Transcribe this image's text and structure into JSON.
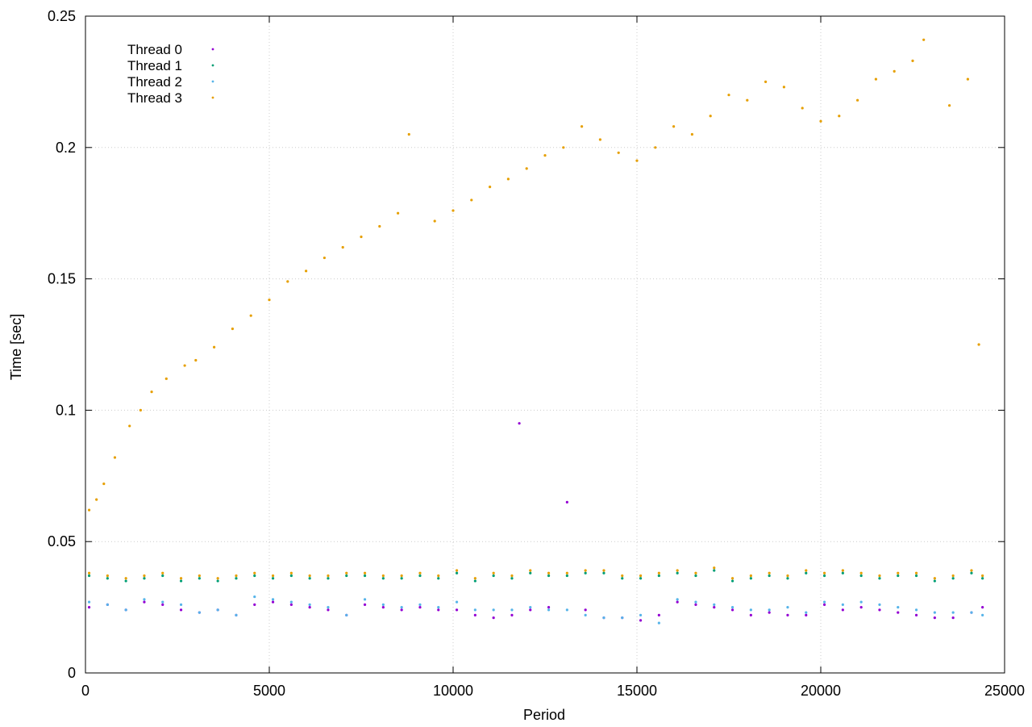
{
  "chart_data": {
    "type": "scatter",
    "title": "",
    "xlabel": "Period",
    "ylabel": "Time [sec]",
    "xlim": [
      0,
      25000
    ],
    "ylim": [
      0,
      0.25
    ],
    "x_ticks": [
      0,
      5000,
      10000,
      15000,
      20000,
      25000
    ],
    "x_tick_labels": [
      "0",
      "5000",
      "10000",
      "15000",
      "20000",
      "25000"
    ],
    "y_ticks": [
      0,
      0.05,
      0.1,
      0.15,
      0.2,
      0.25
    ],
    "y_tick_labels": [
      "0",
      "0.05",
      "0.1",
      "0.15",
      "0.2",
      "0.25"
    ],
    "grid": true,
    "legend_position": "top-left",
    "marker": "dot",
    "series": [
      {
        "name": "Thread 0",
        "color": "#9400d3",
        "x": [
          100,
          600,
          1100,
          1600,
          2100,
          2600,
          3100,
          3600,
          4100,
          4600,
          5100,
          5600,
          6100,
          6600,
          7100,
          7600,
          8100,
          8600,
          9100,
          9600,
          10100,
          10600,
          11100,
          11600,
          11800,
          12100,
          12600,
          13100,
          13600,
          14100,
          14600,
          15100,
          15600,
          16100,
          16600,
          17100,
          17600,
          18100,
          18600,
          19100,
          19600,
          20100,
          20600,
          21100,
          21600,
          22100,
          22600,
          23100,
          23600,
          24100,
          24400
        ],
        "y": [
          0.025,
          0.026,
          0.024,
          0.027,
          0.026,
          0.024,
          0.023,
          0.024,
          0.022,
          0.026,
          0.027,
          0.026,
          0.025,
          0.024,
          0.022,
          0.026,
          0.025,
          0.024,
          0.025,
          0.024,
          0.024,
          0.022,
          0.021,
          0.022,
          0.095,
          0.024,
          0.025,
          0.065,
          0.024,
          0.021,
          0.021,
          0.02,
          0.022,
          0.027,
          0.026,
          0.025,
          0.024,
          0.022,
          0.023,
          0.022,
          0.022,
          0.026,
          0.024,
          0.025,
          0.024,
          0.023,
          0.022,
          0.021,
          0.021,
          0.023,
          0.025
        ]
      },
      {
        "name": "Thread 1",
        "color": "#009e73",
        "x": [
          100,
          600,
          1100,
          1600,
          2100,
          2600,
          3100,
          3600,
          4100,
          4600,
          5100,
          5600,
          6100,
          6600,
          7100,
          7600,
          8100,
          8600,
          9100,
          9600,
          10100,
          10600,
          11100,
          11600,
          12100,
          12600,
          13100,
          13600,
          14100,
          14600,
          15100,
          15600,
          16100,
          16600,
          17100,
          17600,
          18100,
          18600,
          19100,
          19600,
          20100,
          20600,
          21100,
          21600,
          22100,
          22600,
          23100,
          23600,
          24100,
          24400
        ],
        "y": [
          0.037,
          0.036,
          0.035,
          0.036,
          0.037,
          0.035,
          0.036,
          0.035,
          0.036,
          0.037,
          0.036,
          0.037,
          0.036,
          0.036,
          0.037,
          0.037,
          0.036,
          0.036,
          0.037,
          0.036,
          0.038,
          0.035,
          0.037,
          0.036,
          0.038,
          0.037,
          0.037,
          0.038,
          0.038,
          0.036,
          0.036,
          0.037,
          0.038,
          0.037,
          0.039,
          0.035,
          0.036,
          0.037,
          0.036,
          0.038,
          0.037,
          0.038,
          0.037,
          0.036,
          0.037,
          0.037,
          0.035,
          0.036,
          0.038,
          0.036
        ]
      },
      {
        "name": "Thread 2",
        "color": "#56b4e9",
        "x": [
          100,
          600,
          1100,
          1600,
          2100,
          2600,
          3100,
          3600,
          4100,
          4600,
          5100,
          5600,
          6100,
          6600,
          7100,
          7600,
          8100,
          8600,
          9100,
          9600,
          10100,
          10600,
          11100,
          11600,
          12100,
          12600,
          13100,
          13600,
          14100,
          14600,
          15100,
          15600,
          16100,
          16600,
          17100,
          17600,
          18100,
          18600,
          19100,
          19600,
          20100,
          20600,
          21100,
          21600,
          22100,
          22600,
          23100,
          23600,
          24100,
          24400
        ],
        "y": [
          0.027,
          0.026,
          0.024,
          0.028,
          0.027,
          0.026,
          0.023,
          0.024,
          0.022,
          0.029,
          0.028,
          0.027,
          0.026,
          0.025,
          0.022,
          0.028,
          0.026,
          0.025,
          0.026,
          0.025,
          0.027,
          0.024,
          0.024,
          0.024,
          0.025,
          0.024,
          0.024,
          0.022,
          0.021,
          0.021,
          0.022,
          0.019,
          0.028,
          0.027,
          0.026,
          0.025,
          0.024,
          0.024,
          0.025,
          0.023,
          0.027,
          0.026,
          0.027,
          0.026,
          0.025,
          0.024,
          0.023,
          0.023,
          0.023,
          0.022
        ]
      },
      {
        "name": "Thread 3",
        "color": "#e69f00",
        "x": [
          100,
          600,
          1100,
          1600,
          2100,
          2600,
          3100,
          3600,
          4100,
          4600,
          5100,
          5600,
          6100,
          6600,
          7100,
          7600,
          8100,
          8600,
          9100,
          9600,
          10100,
          10600,
          11100,
          11600,
          12100,
          12600,
          13100,
          13600,
          14100,
          14600,
          15100,
          15600,
          16100,
          16600,
          17100,
          17600,
          18100,
          18600,
          19100,
          19600,
          20100,
          20600,
          21100,
          21600,
          22100,
          22600,
          23100,
          23600,
          24100,
          24400
        ],
        "y": [
          0.038,
          0.037,
          0.036,
          0.037,
          0.038,
          0.036,
          0.037,
          0.036,
          0.037,
          0.038,
          0.037,
          0.038,
          0.037,
          0.037,
          0.038,
          0.038,
          0.037,
          0.037,
          0.038,
          0.037,
          0.039,
          0.036,
          0.038,
          0.037,
          0.039,
          0.038,
          0.038,
          0.039,
          0.039,
          0.037,
          0.037,
          0.038,
          0.039,
          0.038,
          0.04,
          0.036,
          0.037,
          0.038,
          0.037,
          0.039,
          0.038,
          0.039,
          0.038,
          0.037,
          0.038,
          0.038,
          0.036,
          0.037,
          0.039,
          0.037
        ]
      }
    ],
    "outliers": {
      "name": "Thread 3",
      "color": "#e69f00",
      "x": [
        100,
        300,
        500,
        800,
        1200,
        1500,
        1800,
        2200,
        2700,
        3000,
        3500,
        4000,
        4500,
        5000,
        5500,
        6000,
        6500,
        7000,
        7500,
        8000,
        8500,
        8800,
        9500,
        10000,
        10500,
        11000,
        11500,
        12000,
        12500,
        13000,
        13500,
        14000,
        14500,
        15000,
        15500,
        16000,
        16500,
        17000,
        17500,
        18000,
        18500,
        19000,
        19500,
        20000,
        20500,
        21000,
        21500,
        22000,
        22500,
        22800,
        23500,
        24000,
        24300
      ],
      "y": [
        0.062,
        0.066,
        0.072,
        0.082,
        0.094,
        0.1,
        0.107,
        0.112,
        0.117,
        0.119,
        0.124,
        0.131,
        0.136,
        0.142,
        0.149,
        0.153,
        0.158,
        0.162,
        0.166,
        0.17,
        0.175,
        0.205,
        0.172,
        0.176,
        0.18,
        0.185,
        0.188,
        0.192,
        0.197,
        0.2,
        0.208,
        0.203,
        0.198,
        0.195,
        0.2,
        0.208,
        0.205,
        0.212,
        0.22,
        0.218,
        0.225,
        0.223,
        0.215,
        0.21,
        0.212,
        0.218,
        0.226,
        0.229,
        0.233,
        0.241,
        0.216,
        0.226,
        0.125
      ]
    }
  }
}
